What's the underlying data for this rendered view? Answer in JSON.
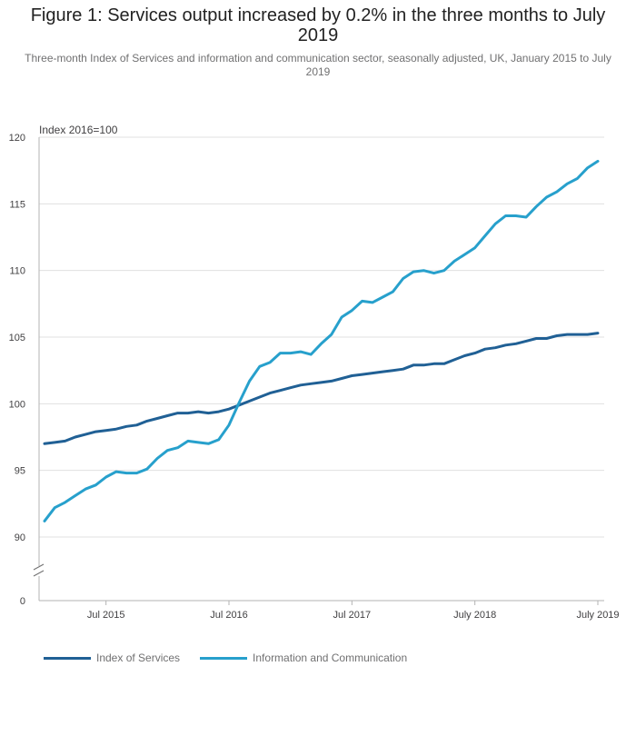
{
  "title": "Figure 1: Services output increased by 0.2% in the three months to July 2019",
  "subtitle": "Three-month Index of Services and information and communication sector, seasonally adjusted, UK, January 2015 to July 2019",
  "chart_data": {
    "type": "line",
    "ylabel": "Index 2016=100",
    "ylim": [
      90,
      120
    ],
    "y_ticks": [
      "0",
      "90",
      "95",
      "100",
      "105",
      "110",
      "115",
      "120"
    ],
    "y_axis_break": true,
    "grid": true,
    "x": [
      "Jan 2015",
      "Feb 2015",
      "Mar 2015",
      "Apr 2015",
      "May 2015",
      "Jun 2015",
      "Jul 2015",
      "Aug 2015",
      "Sep 2015",
      "Oct 2015",
      "Nov 2015",
      "Dec 2015",
      "Jan 2016",
      "Feb 2016",
      "Mar 2016",
      "Apr 2016",
      "May 2016",
      "Jun 2016",
      "Jul 2016",
      "Aug 2016",
      "Sep 2016",
      "Oct 2016",
      "Nov 2016",
      "Dec 2016",
      "Jan 2017",
      "Feb 2017",
      "Mar 2017",
      "Apr 2017",
      "May 2017",
      "Jun 2017",
      "Jul 2017",
      "Aug 2017",
      "Sep 2017",
      "Oct 2017",
      "Nov 2017",
      "Dec 2017",
      "Jan 2018",
      "Feb 2018",
      "Mar 2018",
      "Apr 2018",
      "May 2018",
      "Jun 2018",
      "Jul 2018",
      "Aug 2018",
      "Sep 2018",
      "Oct 2018",
      "Nov 2018",
      "Dec 2018",
      "Jan 2019",
      "Feb 2019",
      "Mar 2019",
      "Apr 2019",
      "May 2019",
      "Jun 2019",
      "Jul 2019"
    ],
    "x_tick_labels": [
      {
        "index": 6,
        "label": "Jul 2015"
      },
      {
        "index": 18,
        "label": "Jul 2016"
      },
      {
        "index": 30,
        "label": "Jul 2017"
      },
      {
        "index": 42,
        "label": "July 2018"
      },
      {
        "index": 54,
        "label": "July 2019"
      }
    ],
    "series": [
      {
        "name": "Index of Services",
        "color": "#206095",
        "values": [
          97.0,
          97.1,
          97.2,
          97.5,
          97.7,
          97.9,
          98.0,
          98.1,
          98.3,
          98.4,
          98.7,
          98.9,
          99.1,
          99.3,
          99.3,
          99.4,
          99.3,
          99.4,
          99.6,
          99.9,
          100.2,
          100.5,
          100.8,
          101.0,
          101.2,
          101.4,
          101.5,
          101.6,
          101.7,
          101.9,
          102.1,
          102.2,
          102.3,
          102.4,
          102.5,
          102.6,
          102.9,
          102.9,
          103.0,
          103.0,
          103.3,
          103.6,
          103.8,
          104.1,
          104.2,
          104.4,
          104.5,
          104.7,
          104.9,
          104.9,
          105.1,
          105.2,
          105.2,
          105.2,
          105.3
        ]
      },
      {
        "name": "Information and Communication",
        "color": "#27a0cc",
        "values": [
          91.2,
          92.2,
          92.6,
          93.1,
          93.6,
          93.9,
          94.5,
          94.9,
          94.8,
          94.8,
          95.1,
          95.9,
          96.5,
          96.7,
          97.2,
          97.1,
          97.0,
          97.3,
          98.4,
          100.1,
          101.7,
          102.8,
          103.1,
          103.8,
          103.8,
          103.9,
          103.7,
          104.5,
          105.2,
          106.5,
          107.0,
          107.7,
          107.6,
          108.0,
          108.4,
          109.4,
          109.9,
          110.0,
          109.8,
          110.0,
          110.7,
          111.2,
          111.7,
          112.6,
          113.5,
          114.1,
          114.1,
          114.0,
          114.8,
          115.5,
          115.9,
          116.5,
          116.9,
          117.7,
          118.2
        ]
      }
    ]
  }
}
